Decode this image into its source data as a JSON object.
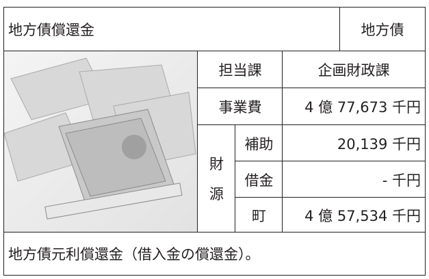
{
  "header": {
    "title": "地方債償還金",
    "category": "地方債"
  },
  "details": {
    "department": {
      "label": "担当課",
      "value": "企画財政課"
    },
    "cost": {
      "label": "事業費",
      "value": "4 億 77,673 千円"
    },
    "funding": {
      "label": "財源",
      "items": [
        {
          "label": "補助",
          "value": "20,139 千円"
        },
        {
          "label": "借金",
          "value": "- 千円"
        },
        {
          "label": "町",
          "value": "4 億 57,534 千円"
        }
      ]
    }
  },
  "description": "地方債元利償還金（借入金の償還金）。"
}
